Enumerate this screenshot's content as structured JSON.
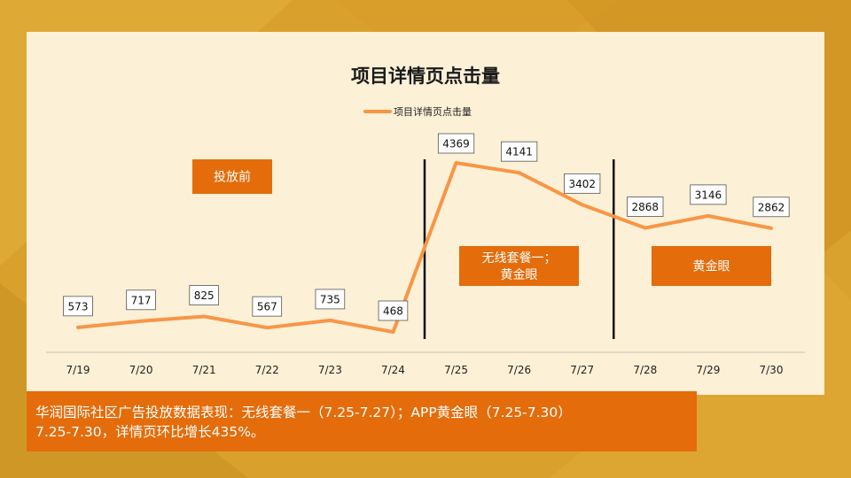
{
  "colors": {
    "background": "#d9a12c",
    "panel": "#fcf0d6",
    "line": "#f79646",
    "box": "#e46c0a",
    "divider": "#111111"
  },
  "chart_data": {
    "type": "line",
    "title": "项目详情页点击量",
    "categories": [
      "7/19",
      "7/20",
      "7/21",
      "7/22",
      "7/23",
      "7/24",
      "7/25",
      "7/26",
      "7/27",
      "7/28",
      "7/29",
      "7/30"
    ],
    "series": [
      {
        "name": "项目详情页点击量",
        "values": [
          573,
          717,
          825,
          567,
          735,
          468,
          4369,
          4141,
          3402,
          2868,
          3146,
          2862
        ],
        "data_labels": [
          "573",
          "717",
          "825",
          "567",
          "735",
          "468",
          "4369",
          "4141",
          "3402",
          "2868",
          "3146",
          "2862"
        ]
      }
    ],
    "legend": "top-center",
    "grid": false,
    "y_axis_visible": false,
    "dividers_between": [
      [
        "7/24",
        "7/25"
      ],
      [
        "7/27",
        "7/28"
      ]
    ],
    "annotations": [
      {
        "text": "投放前"
      },
      {
        "text": "无线套餐一；\n黄金眼"
      },
      {
        "text": "黄金眼"
      }
    ]
  },
  "footer": {
    "line1": "华润国际社区广告投放数据表现：无线套餐一（7.25-7.27）；APP黄金眼（7.25-7.30）",
    "line2": "7.25-7.30，详情页环比增长435%。"
  }
}
